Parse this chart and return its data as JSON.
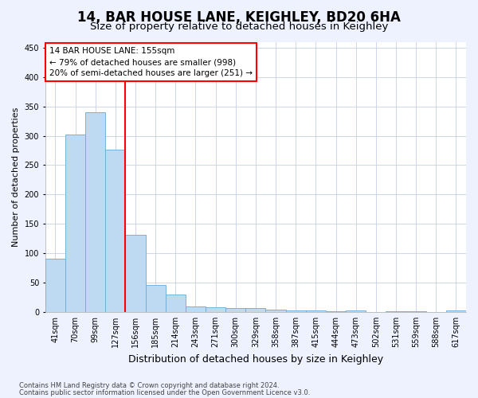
{
  "title": "14, BAR HOUSE LANE, KEIGHLEY, BD20 6HA",
  "subtitle": "Size of property relative to detached houses in Keighley",
  "xlabel": "Distribution of detached houses by size in Keighley",
  "ylabel": "Number of detached properties",
  "bar_labels": [
    "41sqm",
    "70sqm",
    "99sqm",
    "127sqm",
    "156sqm",
    "185sqm",
    "214sqm",
    "243sqm",
    "271sqm",
    "300sqm",
    "329sqm",
    "358sqm",
    "387sqm",
    "415sqm",
    "444sqm",
    "473sqm",
    "502sqm",
    "531sqm",
    "559sqm",
    "588sqm",
    "617sqm"
  ],
  "bar_values": [
    91,
    302,
    340,
    276,
    131,
    46,
    30,
    10,
    8,
    7,
    7,
    4,
    3,
    3,
    1,
    3,
    0,
    1,
    1,
    0,
    3
  ],
  "bar_color": "#BEDAF2",
  "bar_edge_color": "#6AAAD4",
  "highlight_line_index": 4,
  "annotation_line1": "14 BAR HOUSE LANE: 155sqm",
  "annotation_line2": "← 79% of detached houses are smaller (998)",
  "annotation_line3": "20% of semi-detached houses are larger (251) →",
  "ylim": [
    0,
    460
  ],
  "yticks": [
    0,
    50,
    100,
    150,
    200,
    250,
    300,
    350,
    400,
    450
  ],
  "footnote1": "Contains HM Land Registry data © Crown copyright and database right 2024.",
  "footnote2": "Contains public sector information licensed under the Open Government Licence v3.0.",
  "bg_color": "#EEF2FF",
  "plot_bg_color": "#FFFFFF",
  "title_fontsize": 12,
  "subtitle_fontsize": 9.5,
  "ylabel_fontsize": 8,
  "xlabel_fontsize": 9,
  "tick_fontsize": 7,
  "annot_fontsize": 7.5,
  "footnote_fontsize": 6
}
